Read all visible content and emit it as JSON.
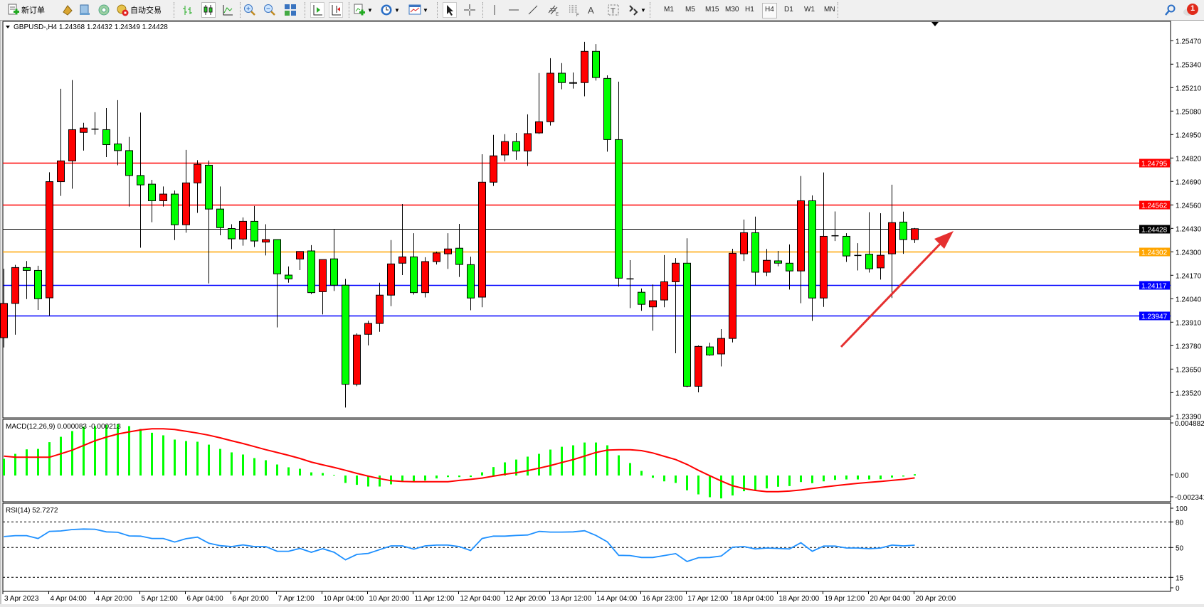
{
  "toolbar": {
    "new_order_label": "新订单",
    "auto_trading_label": "自动交易",
    "timeframes": [
      "M1",
      "M5",
      "M15",
      "M30",
      "H1",
      "H4",
      "D1",
      "W1",
      "MN"
    ],
    "active_timeframe": "H4",
    "notification_count": "1",
    "text_tool_label": "A",
    "text_label_tool_label": "T"
  },
  "chart": {
    "symbol_header": "GBPUSD-,H4  1.24368 1.24432 1.24349 1.24428",
    "macd_header": "MACD(12,26,9) 0.000083 -0.000213",
    "rsi_header": "RSI(14) 52.7272"
  },
  "chart_data": {
    "type": "candlestick",
    "symbol": "GBPUSD-",
    "timeframe": "H4",
    "up_color": "#ff0000",
    "down_color": "#00ff00",
    "price_axis": {
      "ticks": [
        "1.25470",
        "1.25340",
        "1.25210",
        "1.25080",
        "1.24950",
        "1.24820",
        "1.24690",
        "1.24560",
        "1.24430",
        "1.24300",
        "1.24170",
        "1.24040",
        "1.23910",
        "1.23780",
        "1.23650",
        "1.23520",
        "1.23390"
      ],
      "range": [
        1.2339,
        1.2547
      ]
    },
    "horizontal_lines": [
      {
        "price": "1.24795",
        "color": "#ff0000"
      },
      {
        "price": "1.24562",
        "color": "#ff0000"
      },
      {
        "price": "1.24428",
        "color": "#000000"
      },
      {
        "price": "1.24302",
        "color": "#ffa500"
      },
      {
        "price": "1.24117",
        "color": "#0000ff"
      },
      {
        "price": "1.23947",
        "color": "#0000ff"
      }
    ],
    "time_labels": [
      "3 Apr 2023",
      "4 Apr 04:00",
      "4 Apr 20:00",
      "5 Apr 12:00",
      "6 Apr 04:00",
      "6 Apr 20:00",
      "7 Apr 12:00",
      "10 Apr 04:00",
      "10 Apr 20:00",
      "11 Apr 12:00",
      "12 Apr 04:00",
      "12 Apr 20:00",
      "13 Apr 12:00",
      "14 Apr 04:00",
      "16 Apr 23:00",
      "17 Apr 12:00",
      "18 Apr 04:00",
      "18 Apr 20:00",
      "19 Apr 12:00",
      "20 Apr 04:00",
      "20 Apr 20:00"
    ],
    "ohlc": [
      [
        1.23824,
        1.24206,
        1.2377,
        1.24014
      ],
      [
        1.24014,
        1.24228,
        1.23841,
        1.24213
      ],
      [
        1.24213,
        1.24249,
        1.24038,
        1.24197
      ],
      [
        1.24197,
        1.24223,
        1.23978,
        1.2404
      ],
      [
        1.24045,
        1.24741,
        1.23946,
        1.24689
      ],
      [
        1.24689,
        1.25204,
        1.2461,
        1.24804
      ],
      [
        1.24804,
        1.25252,
        1.2465,
        1.24977
      ],
      [
        1.24962,
        1.25015,
        1.24861,
        1.24986
      ],
      [
        1.2498,
        1.25074,
        1.24949,
        1.2498
      ],
      [
        1.24977,
        1.25097,
        1.24825,
        1.24894
      ],
      [
        1.24898,
        1.25141,
        1.2478,
        1.24861
      ],
      [
        1.24861,
        1.24937,
        1.24551,
        1.24723
      ],
      [
        1.24723,
        1.25072,
        1.24323,
        1.24671
      ],
      [
        1.24675,
        1.24699,
        1.24464,
        1.24583
      ],
      [
        1.24583,
        1.24662,
        1.24551,
        1.2462
      ],
      [
        1.2462,
        1.2464,
        1.24365,
        1.2445
      ],
      [
        1.2445,
        1.24865,
        1.24406,
        1.24682
      ],
      [
        1.24682,
        1.24808,
        1.24516,
        1.24785
      ],
      [
        1.2478,
        1.24806,
        1.24125,
        1.24537
      ],
      [
        1.24537,
        1.24662,
        1.24392,
        1.24434
      ],
      [
        1.24429,
        1.24453,
        1.24315,
        1.24372
      ],
      [
        1.24371,
        1.24491,
        1.24334,
        1.24469
      ],
      [
        1.24469,
        1.24554,
        1.24327,
        1.2436
      ],
      [
        1.24354,
        1.24453,
        1.2428,
        1.24368
      ],
      [
        1.24368,
        1.24368,
        1.23881,
        1.24178
      ],
      [
        1.24171,
        1.24219,
        1.24129,
        1.2415
      ],
      [
        1.2426,
        1.24302,
        1.24199,
        1.24302
      ],
      [
        1.24305,
        1.24337,
        1.24066,
        1.24074
      ],
      [
        1.24079,
        1.24257,
        1.23953,
        1.24257
      ],
      [
        1.24261,
        1.24424,
        1.24083,
        1.24115
      ],
      [
        1.24115,
        1.2415,
        1.23437,
        1.23566
      ],
      [
        1.23566,
        1.23848,
        1.23555,
        1.23839
      ],
      [
        1.23843,
        1.23918,
        1.23781,
        1.23903
      ],
      [
        1.23903,
        1.24129,
        1.23857,
        1.2406
      ],
      [
        1.2406,
        1.24365,
        1.23999,
        1.24233
      ],
      [
        1.24237,
        1.24565,
        1.24171,
        1.24272
      ],
      [
        1.24272,
        1.24403,
        1.24063,
        1.24074
      ],
      [
        1.24074,
        1.2427,
        1.24047,
        1.24246
      ],
      [
        1.24246,
        1.24301,
        1.2423,
        1.24294
      ],
      [
        1.24289,
        1.24403,
        1.24205,
        1.24316
      ],
      [
        1.2432,
        1.24455,
        1.24161,
        1.2423
      ],
      [
        1.24229,
        1.24273,
        1.23976,
        1.24044
      ],
      [
        1.24049,
        1.24841,
        1.23993,
        1.24686
      ],
      [
        1.24686,
        1.24948,
        1.24665,
        1.24832
      ],
      [
        1.24837,
        1.24952,
        1.24801,
        1.24911
      ],
      [
        1.24911,
        1.24959,
        1.2481,
        1.24859
      ],
      [
        1.24859,
        1.25062,
        1.24776,
        1.24955
      ],
      [
        1.24959,
        1.25291,
        1.24953,
        1.25021
      ],
      [
        1.25021,
        1.25373,
        1.25,
        1.2529
      ],
      [
        1.2529,
        1.25346,
        1.25201,
        1.25238
      ],
      [
        1.25238,
        1.25294,
        1.25205,
        1.25237
      ],
      [
        1.25238,
        1.25464,
        1.25162,
        1.25411
      ],
      [
        1.25411,
        1.25451,
        1.25249,
        1.25266
      ],
      [
        1.25261,
        1.25278,
        1.24855,
        1.24922
      ],
      [
        1.24922,
        1.25243,
        1.24107,
        1.24154
      ],
      [
        1.2415,
        1.24254,
        1.23988,
        1.2415
      ],
      [
        1.24076,
        1.24097,
        1.23973,
        1.24009
      ],
      [
        1.23995,
        1.24119,
        1.23863,
        1.24029
      ],
      [
        1.24033,
        1.24282,
        1.23993,
        1.24134
      ],
      [
        1.24134,
        1.24265,
        1.23738,
        1.24237
      ],
      [
        1.24237,
        1.24375,
        1.23549,
        1.23555
      ],
      [
        1.23555,
        1.23781,
        1.23521,
        1.23776
      ],
      [
        1.23773,
        1.23796,
        1.23724,
        1.23728
      ],
      [
        1.23734,
        1.23872,
        1.23665,
        1.2382
      ],
      [
        1.2382,
        1.24317,
        1.23798,
        1.24292
      ],
      [
        1.24289,
        1.24479,
        1.24249,
        1.24406
      ],
      [
        1.24406,
        1.24495,
        1.24114,
        1.24187
      ],
      [
        1.24187,
        1.24316,
        1.24166,
        1.24253
      ],
      [
        1.2425,
        1.24305,
        1.2422,
        1.24237
      ],
      [
        1.24237,
        1.24341,
        1.24091,
        1.24194
      ],
      [
        1.24194,
        1.2472,
        1.24015,
        1.24583
      ],
      [
        1.24583,
        1.24613,
        1.23917,
        1.24044
      ],
      [
        1.24044,
        1.2474,
        1.23995,
        1.24386
      ],
      [
        1.24389,
        1.24524,
        1.2436,
        1.24389
      ],
      [
        1.24386,
        1.24403,
        1.24244,
        1.24277
      ],
      [
        1.2428,
        1.24348,
        1.24197,
        1.2428
      ],
      [
        1.24287,
        1.2452,
        1.24185,
        1.24206
      ],
      [
        1.24211,
        1.24514,
        1.24146,
        1.24281
      ],
      [
        1.24289,
        1.24672,
        1.24044,
        1.24462
      ],
      [
        1.24465,
        1.24523,
        1.24289,
        1.24368
      ],
      [
        1.24368,
        1.24432,
        1.24349,
        1.24428
      ]
    ],
    "macd": {
      "axis_ticks": [
        "0.004882",
        "0.00",
        "-0.002341"
      ],
      "range": [
        -0.002341,
        0.004882
      ],
      "histogram_color": "#00ff00",
      "signal_color": "#ff0000",
      "main": [
        0.00146,
        0.0019,
        0.0023,
        0.00234,
        0.00294,
        0.00342,
        0.00393,
        0.00431,
        0.00437,
        0.00448,
        0.00454,
        0.00437,
        0.00412,
        0.00378,
        0.00355,
        0.00317,
        0.00304,
        0.00298,
        0.00272,
        0.00234,
        0.00203,
        0.00184,
        0.00152,
        0.00133,
        0.00095,
        0.0007,
        0.00057,
        0.00025,
        0.00019,
        2e-05,
        -0.00063,
        -0.0008,
        -0.00095,
        -0.00095,
        -0.00076,
        -0.00049,
        -0.00049,
        -0.00042,
        -0.00023,
        -0.00011,
        -0.00011,
        -0.0001,
        0.00025,
        0.00072,
        0.00114,
        0.00139,
        0.00165,
        0.0019,
        0.00228,
        0.00253,
        0.00266,
        0.00291,
        0.00291,
        0.00266,
        0.00177,
        0.00108,
        0.00038,
        -0.00017,
        -0.00049,
        -0.00063,
        -0.00129,
        -0.00165,
        -0.0019,
        -0.00201,
        -0.00175,
        -0.00137,
        -0.00133,
        -0.00112,
        -0.00097,
        -0.00091,
        -0.00055,
        -0.00065,
        -0.00049,
        -0.00036,
        -0.00032,
        -0.00032,
        -0.00032,
        -0.0003,
        -0.00015,
        -6e-05,
        8.3e-05
      ],
      "signal": [
        0.00173,
        0.00163,
        0.00163,
        0.00163,
        0.00163,
        0.00194,
        0.00226,
        0.00268,
        0.0031,
        0.00342,
        0.0037,
        0.00389,
        0.00406,
        0.00416,
        0.00416,
        0.0041,
        0.00395,
        0.00378,
        0.00359,
        0.00336,
        0.0031,
        0.00285,
        0.00258,
        0.0023,
        0.00205,
        0.0018,
        0.00152,
        0.0012,
        0.00095,
        0.00072,
        0.00046,
        0.00019,
        -6e-05,
        -0.00027,
        -0.00046,
        -0.00053,
        -0.00055,
        -0.00055,
        -0.00055,
        -0.00055,
        -0.00044,
        -0.00034,
        -0.00023,
        -6e-05,
        0.00011,
        0.00025,
        0.00044,
        0.00065,
        0.00089,
        0.00116,
        0.00142,
        0.00173,
        0.00205,
        0.00226,
        0.0023,
        0.0023,
        0.00222,
        0.00201,
        0.00171,
        0.00142,
        0.00099,
        0.00046,
        -2e-05,
        -0.00049,
        -0.00091,
        -0.00116,
        -0.00133,
        -0.00144,
        -0.00144,
        -0.00139,
        -0.00129,
        -0.00116,
        -0.00103,
        -0.00091,
        -0.0008,
        -0.0007,
        -0.00061,
        -0.00053,
        -0.00044,
        -0.00034,
        -0.000213
      ]
    },
    "rsi": {
      "axis_ticks": [
        "100",
        "80",
        "50",
        "15",
        "0"
      ],
      "levels": [
        80,
        50,
        15
      ],
      "range": [
        0,
        100
      ],
      "color": "#1e90ff",
      "values": [
        62.8,
        63.9,
        63.9,
        60.6,
        68.9,
        69.4,
        71.1,
        71.7,
        71.4,
        68.3,
        67.8,
        63.6,
        63.3,
        60.6,
        60.6,
        56.4,
        60.3,
        62.2,
        55.0,
        52.2,
        51.1,
        53.1,
        51.1,
        51.1,
        45.6,
        45.6,
        48.9,
        44.4,
        48.6,
        44.4,
        35.6,
        41.9,
        43.1,
        47.5,
        51.9,
        51.9,
        48.1,
        51.9,
        52.8,
        52.8,
        51.1,
        46.4,
        60.6,
        63.3,
        63.3,
        64.2,
        64.7,
        68.9,
        68.1,
        68.1,
        68.3,
        69.7,
        64.2,
        56.7,
        40.8,
        40.6,
        38.3,
        38.3,
        40.6,
        42.8,
        33.6,
        38.1,
        38.3,
        40.0,
        50.3,
        51.1,
        48.3,
        49.4,
        48.9,
        48.3,
        55.6,
        45.6,
        51.7,
        51.7,
        49.4,
        49.4,
        48.6,
        49.4,
        52.8,
        51.9,
        52.7272
      ]
    },
    "annotation_arrow_color": "#e53030",
    "grid": false
  }
}
